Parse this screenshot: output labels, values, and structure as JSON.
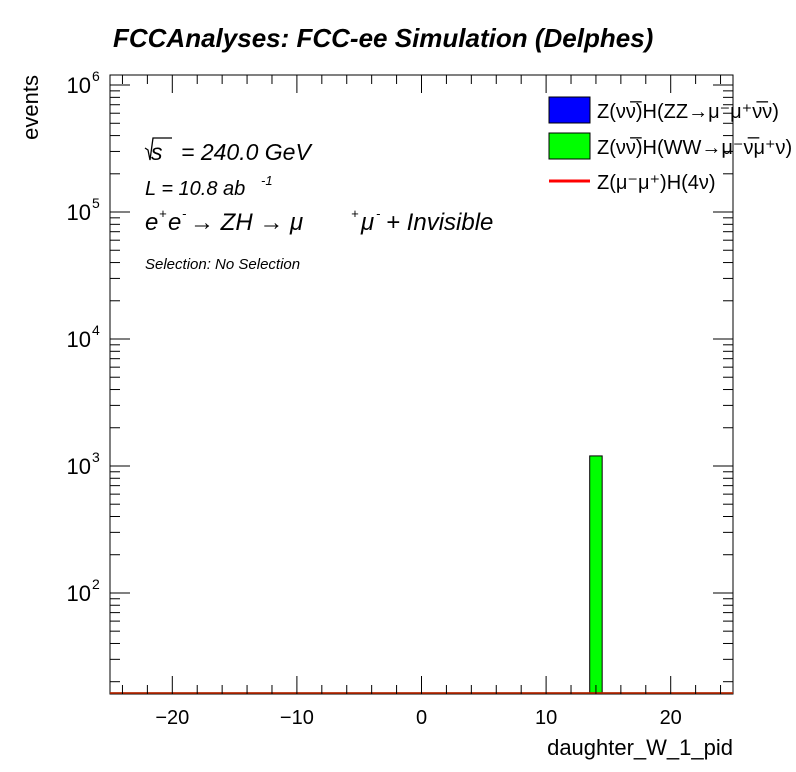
{
  "chart_data": {
    "type": "bar",
    "title": "FCCAnalyses: FCC-ee Simulation (Delphes)",
    "xlabel": "daughter_W_1_pid",
    "ylabel": "events",
    "yscale": "log",
    "xlim": [
      -25,
      25
    ],
    "ylim": [
      16,
      1200000
    ],
    "x_ticks": [
      -20,
      -10,
      0,
      10,
      20
    ],
    "x_tick_labels": [
      "−20",
      "−10",
      "0",
      "10",
      "20"
    ],
    "y_ticks": [
      100,
      1000,
      10000,
      100000,
      1000000
    ],
    "y_tick_labels": [
      "10",
      "10",
      "10",
      "10",
      "10"
    ],
    "y_tick_exponents": [
      "2",
      "3",
      "4",
      "5",
      "6"
    ],
    "bins": [
      [
        13.5,
        14.5
      ]
    ],
    "series": [
      {
        "name": "Z(νν̅)H(ZZ→μ⁻μ⁺ν̅ν)",
        "style": "filled",
        "color": "#0000ff",
        "values": [
          0
        ]
      },
      {
        "name": "Z(νν̅)H(WW→μ⁻ν̅μ⁺ν)",
        "style": "filled",
        "color": "#00ff00",
        "values": [
          1200
        ]
      },
      {
        "name": "Z(μ⁻μ⁺)H(4ν)",
        "style": "line",
        "color": "#ff0000",
        "values": [
          0
        ]
      }
    ],
    "legend_position": "top-right",
    "annotations": {
      "sqrt_s_value": "= 240.0 GeV",
      "lumi_prefix": "L = 10.8 ab",
      "lumi_exponent": "-1",
      "process": {
        "ee": "e",
        "plus": "+",
        "minus": "-",
        "zh": "→ ZH → μ",
        "mu_plus": "+",
        "mu": "μ",
        "mu_minus": "-",
        "invisible": "+ Invisible"
      },
      "selection": "Selection: No Selection"
    }
  }
}
